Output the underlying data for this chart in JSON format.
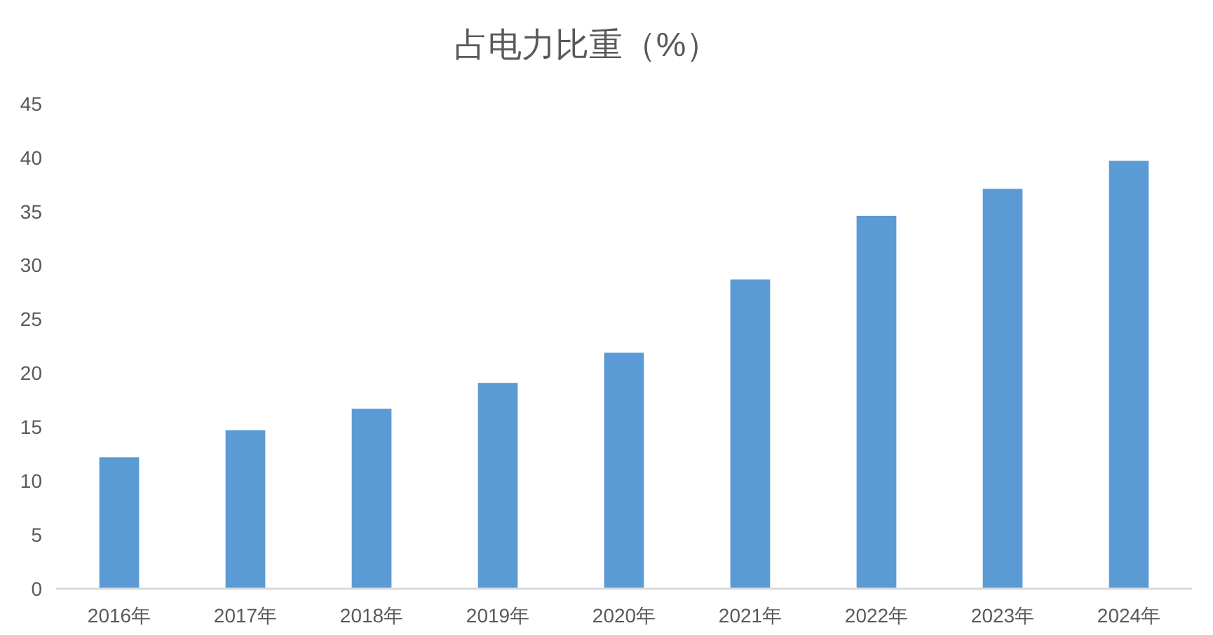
{
  "chart_data": {
    "type": "bar",
    "title": "占电力比重（%）",
    "categories": [
      "2016年",
      "2017年",
      "2018年",
      "2019年",
      "2020年",
      "2021年",
      "2022年",
      "2023年",
      "2024年"
    ],
    "values": [
      12.2,
      14.7,
      16.7,
      19.1,
      21.9,
      28.7,
      34.6,
      37.1,
      39.7
    ],
    "color": "#5b9bd5",
    "ylim": [
      0,
      45
    ],
    "yticks": [
      0,
      5,
      10,
      15,
      20,
      25,
      30,
      35,
      40,
      45
    ]
  }
}
